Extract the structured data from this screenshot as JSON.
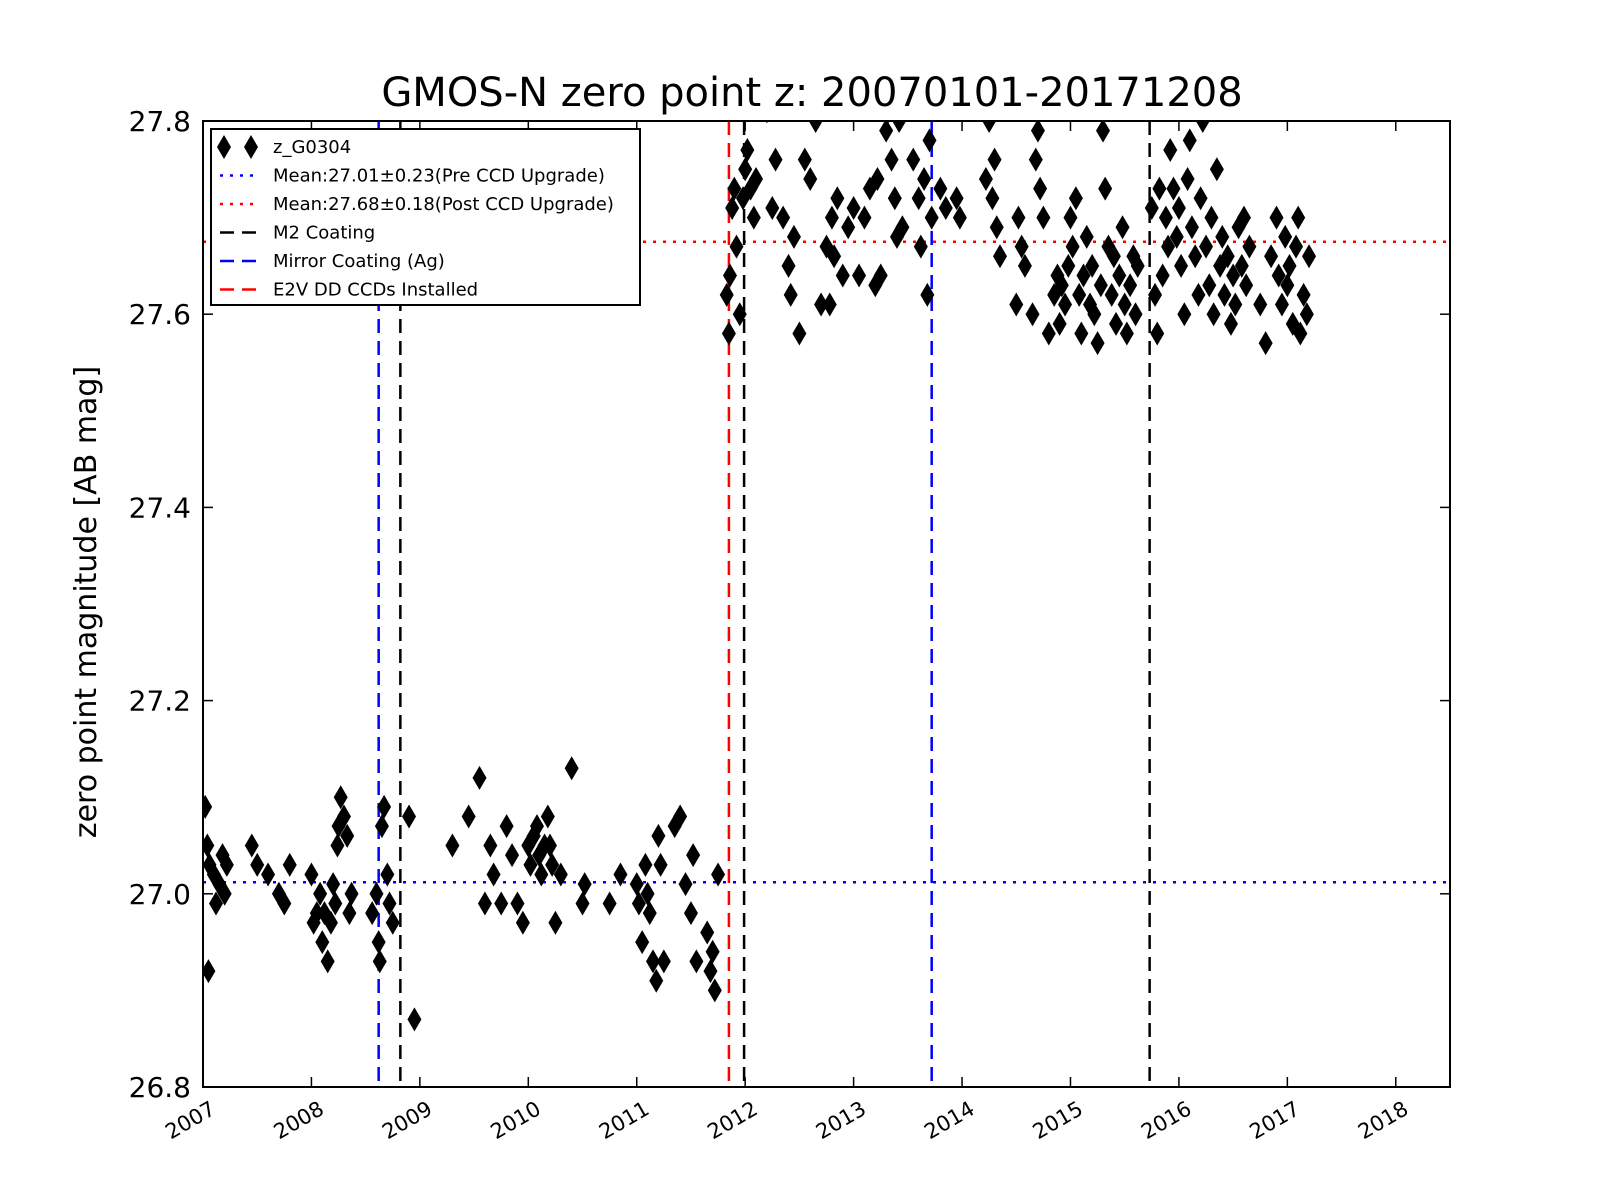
{
  "chart_data": {
    "type": "scatter",
    "title": "GMOS-N zero point z: 20070101-20171208",
    "xlabel": "",
    "ylabel": "zero point magnitude [AB mag]",
    "xlim": [
      2007.0,
      2018.5
    ],
    "ylim": [
      26.8,
      27.8
    ],
    "x_tick_labels": [
      "2007",
      "2008",
      "2009",
      "2010",
      "2011",
      "2012",
      "2013",
      "2014",
      "2015",
      "2016",
      "2017",
      "2018"
    ],
    "y_tick_labels": [
      "26.8",
      "27.0",
      "27.2",
      "27.4",
      "27.6",
      "27.8"
    ],
    "grid": false,
    "legend_position": "top-left",
    "series": [
      {
        "name": "z_G0304",
        "marker": "diamond",
        "color": "#000000",
        "points": [
          [
            2007.02,
            27.09
          ],
          [
            2007.04,
            27.05
          ],
          [
            2007.06,
            27.03
          ],
          [
            2007.05,
            26.92
          ],
          [
            2007.1,
            27.02
          ],
          [
            2007.12,
            26.99
          ],
          [
            2007.15,
            27.01
          ],
          [
            2007.18,
            27.04
          ],
          [
            2007.2,
            27.0
          ],
          [
            2007.22,
            27.03
          ],
          [
            2007.45,
            27.05
          ],
          [
            2007.5,
            27.03
          ],
          [
            2007.6,
            27.02
          ],
          [
            2007.7,
            27.0
          ],
          [
            2007.75,
            26.99
          ],
          [
            2007.8,
            27.03
          ],
          [
            2008.0,
            27.02
          ],
          [
            2008.02,
            26.97
          ],
          [
            2008.05,
            26.98
          ],
          [
            2008.08,
            27.0
          ],
          [
            2008.1,
            26.95
          ],
          [
            2008.12,
            26.98
          ],
          [
            2008.15,
            26.93
          ],
          [
            2008.18,
            26.97
          ],
          [
            2008.2,
            27.01
          ],
          [
            2008.22,
            26.99
          ],
          [
            2008.24,
            27.05
          ],
          [
            2008.25,
            27.07
          ],
          [
            2008.27,
            27.1
          ],
          [
            2008.3,
            27.08
          ],
          [
            2008.33,
            27.06
          ],
          [
            2008.35,
            26.98
          ],
          [
            2008.37,
            27.0
          ],
          [
            2008.56,
            26.98
          ],
          [
            2008.6,
            27.0
          ],
          [
            2008.62,
            26.95
          ],
          [
            2008.63,
            26.93
          ],
          [
            2008.65,
            27.07
          ],
          [
            2008.67,
            27.09
          ],
          [
            2008.7,
            27.02
          ],
          [
            2008.72,
            26.99
          ],
          [
            2008.75,
            26.97
          ],
          [
            2008.9,
            27.08
          ],
          [
            2008.95,
            26.87
          ],
          [
            2009.3,
            27.05
          ],
          [
            2009.45,
            27.08
          ],
          [
            2009.55,
            27.12
          ],
          [
            2009.6,
            26.99
          ],
          [
            2009.65,
            27.05
          ],
          [
            2009.68,
            27.02
          ],
          [
            2009.75,
            26.99
          ],
          [
            2009.8,
            27.07
          ],
          [
            2009.85,
            27.04
          ],
          [
            2009.9,
            26.99
          ],
          [
            2009.95,
            26.97
          ],
          [
            2010.0,
            27.05
          ],
          [
            2010.02,
            27.03
          ],
          [
            2010.05,
            27.06
          ],
          [
            2010.08,
            27.07
          ],
          [
            2010.1,
            27.04
          ],
          [
            2010.12,
            27.02
          ],
          [
            2010.15,
            27.05
          ],
          [
            2010.18,
            27.08
          ],
          [
            2010.2,
            27.05
          ],
          [
            2010.22,
            27.03
          ],
          [
            2010.25,
            26.97
          ],
          [
            2010.3,
            27.02
          ],
          [
            2010.4,
            27.13
          ],
          [
            2010.5,
            26.99
          ],
          [
            2010.52,
            27.01
          ],
          [
            2010.75,
            26.99
          ],
          [
            2010.85,
            27.02
          ],
          [
            2011.0,
            27.01
          ],
          [
            2011.02,
            26.99
          ],
          [
            2011.05,
            26.95
          ],
          [
            2011.08,
            27.03
          ],
          [
            2011.1,
            27.0
          ],
          [
            2011.12,
            26.98
          ],
          [
            2011.15,
            26.93
          ],
          [
            2011.18,
            26.91
          ],
          [
            2011.2,
            27.06
          ],
          [
            2011.22,
            27.03
          ],
          [
            2011.25,
            26.93
          ],
          [
            2011.35,
            27.07
          ],
          [
            2011.4,
            27.08
          ],
          [
            2011.45,
            27.01
          ],
          [
            2011.5,
            26.98
          ],
          [
            2011.52,
            27.04
          ],
          [
            2011.55,
            26.93
          ],
          [
            2011.65,
            26.96
          ],
          [
            2011.68,
            26.92
          ],
          [
            2011.7,
            26.94
          ],
          [
            2011.72,
            26.9
          ],
          [
            2011.75,
            27.02
          ],
          [
            2011.83,
            27.62
          ],
          [
            2011.85,
            27.58
          ],
          [
            2011.86,
            27.64
          ],
          [
            2011.88,
            27.71
          ],
          [
            2011.9,
            27.73
          ],
          [
            2011.92,
            27.67
          ],
          [
            2011.95,
            27.6
          ],
          [
            2011.98,
            27.72
          ],
          [
            2012.0,
            27.75
          ],
          [
            2012.02,
            27.77
          ],
          [
            2012.05,
            27.73
          ],
          [
            2012.08,
            27.7
          ],
          [
            2012.1,
            27.74
          ],
          [
            2012.2,
            27.81
          ],
          [
            2012.25,
            27.71
          ],
          [
            2012.28,
            27.76
          ],
          [
            2012.35,
            27.7
          ],
          [
            2012.4,
            27.65
          ],
          [
            2012.42,
            27.62
          ],
          [
            2012.45,
            27.68
          ],
          [
            2012.5,
            27.58
          ],
          [
            2012.55,
            27.76
          ],
          [
            2012.6,
            27.74
          ],
          [
            2012.65,
            27.8
          ],
          [
            2012.7,
            27.61
          ],
          [
            2012.75,
            27.67
          ],
          [
            2012.78,
            27.61
          ],
          [
            2012.8,
            27.7
          ],
          [
            2012.82,
            27.66
          ],
          [
            2012.85,
            27.72
          ],
          [
            2012.9,
            27.64
          ],
          [
            2012.95,
            27.69
          ],
          [
            2013.0,
            27.71
          ],
          [
            2013.05,
            27.64
          ],
          [
            2013.1,
            27.7
          ],
          [
            2013.15,
            27.73
          ],
          [
            2013.2,
            27.63
          ],
          [
            2013.22,
            27.74
          ],
          [
            2013.25,
            27.64
          ],
          [
            2013.3,
            27.79
          ],
          [
            2013.32,
            27.81
          ],
          [
            2013.35,
            27.76
          ],
          [
            2013.38,
            27.72
          ],
          [
            2013.4,
            27.68
          ],
          [
            2013.42,
            27.8
          ],
          [
            2013.45,
            27.69
          ],
          [
            2013.55,
            27.76
          ],
          [
            2013.6,
            27.72
          ],
          [
            2013.62,
            27.67
          ],
          [
            2013.65,
            27.74
          ],
          [
            2013.68,
            27.62
          ],
          [
            2013.7,
            27.78
          ],
          [
            2013.72,
            27.7
          ],
          [
            2013.8,
            27.73
          ],
          [
            2013.85,
            27.71
          ],
          [
            2013.95,
            27.72
          ],
          [
            2013.98,
            27.7
          ],
          [
            2014.22,
            27.74
          ],
          [
            2014.25,
            27.8
          ],
          [
            2014.28,
            27.72
          ],
          [
            2014.3,
            27.76
          ],
          [
            2014.32,
            27.69
          ],
          [
            2014.35,
            27.66
          ],
          [
            2014.5,
            27.61
          ],
          [
            2014.52,
            27.7
          ],
          [
            2014.55,
            27.67
          ],
          [
            2014.58,
            27.65
          ],
          [
            2014.65,
            27.6
          ],
          [
            2014.68,
            27.76
          ],
          [
            2014.7,
            27.79
          ],
          [
            2014.72,
            27.73
          ],
          [
            2014.75,
            27.7
          ],
          [
            2014.8,
            27.58
          ],
          [
            2014.85,
            27.62
          ],
          [
            2014.88,
            27.64
          ],
          [
            2014.9,
            27.59
          ],
          [
            2014.92,
            27.63
          ],
          [
            2014.95,
            27.61
          ],
          [
            2014.98,
            27.65
          ],
          [
            2015.0,
            27.7
          ],
          [
            2015.02,
            27.67
          ],
          [
            2015.05,
            27.72
          ],
          [
            2015.08,
            27.62
          ],
          [
            2015.1,
            27.58
          ],
          [
            2015.12,
            27.64
          ],
          [
            2015.15,
            27.68
          ],
          [
            2015.18,
            27.61
          ],
          [
            2015.2,
            27.65
          ],
          [
            2015.22,
            27.6
          ],
          [
            2015.25,
            27.57
          ],
          [
            2015.28,
            27.63
          ],
          [
            2015.3,
            27.79
          ],
          [
            2015.32,
            27.73
          ],
          [
            2015.35,
            27.67
          ],
          [
            2015.38,
            27.62
          ],
          [
            2015.4,
            27.66
          ],
          [
            2015.42,
            27.59
          ],
          [
            2015.45,
            27.64
          ],
          [
            2015.48,
            27.69
          ],
          [
            2015.5,
            27.61
          ],
          [
            2015.52,
            27.58
          ],
          [
            2015.55,
            27.63
          ],
          [
            2015.58,
            27.66
          ],
          [
            2015.6,
            27.6
          ],
          [
            2015.62,
            27.65
          ],
          [
            2015.75,
            27.71
          ],
          [
            2015.78,
            27.62
          ],
          [
            2015.8,
            27.58
          ],
          [
            2015.82,
            27.73
          ],
          [
            2015.85,
            27.64
          ],
          [
            2015.88,
            27.7
          ],
          [
            2015.9,
            27.67
          ],
          [
            2015.92,
            27.77
          ],
          [
            2015.95,
            27.73
          ],
          [
            2015.98,
            27.68
          ],
          [
            2016.0,
            27.71
          ],
          [
            2016.02,
            27.65
          ],
          [
            2016.05,
            27.6
          ],
          [
            2016.08,
            27.74
          ],
          [
            2016.1,
            27.78
          ],
          [
            2016.12,
            27.69
          ],
          [
            2016.15,
            27.66
          ],
          [
            2016.18,
            27.62
          ],
          [
            2016.2,
            27.72
          ],
          [
            2016.22,
            27.8
          ],
          [
            2016.25,
            27.67
          ],
          [
            2016.28,
            27.63
          ],
          [
            2016.3,
            27.7
          ],
          [
            2016.32,
            27.6
          ],
          [
            2016.35,
            27.75
          ],
          [
            2016.38,
            27.65
          ],
          [
            2016.4,
            27.68
          ],
          [
            2016.42,
            27.62
          ],
          [
            2016.45,
            27.66
          ],
          [
            2016.48,
            27.59
          ],
          [
            2016.5,
            27.64
          ],
          [
            2016.52,
            27.61
          ],
          [
            2016.55,
            27.69
          ],
          [
            2016.58,
            27.65
          ],
          [
            2016.6,
            27.7
          ],
          [
            2016.62,
            27.63
          ],
          [
            2016.65,
            27.67
          ],
          [
            2016.75,
            27.61
          ],
          [
            2016.8,
            27.57
          ],
          [
            2016.85,
            27.66
          ],
          [
            2016.9,
            27.7
          ],
          [
            2016.92,
            27.64
          ],
          [
            2016.95,
            27.61
          ],
          [
            2016.98,
            27.68
          ],
          [
            2017.0,
            27.63
          ],
          [
            2017.02,
            27.65
          ],
          [
            2017.05,
            27.59
          ],
          [
            2017.08,
            27.67
          ],
          [
            2017.1,
            27.7
          ],
          [
            2017.12,
            27.58
          ],
          [
            2017.15,
            27.62
          ],
          [
            2017.18,
            27.6
          ],
          [
            2017.2,
            27.66
          ]
        ]
      }
    ],
    "horizontal_lines": [
      {
        "name": "Mean:27.01±0.23(Pre CCD Upgrade)",
        "y": 27.012,
        "style": "dotted",
        "color": "#0000ff"
      },
      {
        "name": "Mean:27.68±0.18(Post CCD Upgrade)",
        "y": 27.675,
        "style": "dotted",
        "color": "#ff0000"
      }
    ],
    "vertical_lines": [
      {
        "name": "M2 Coating",
        "color": "#000000",
        "style": "dashed",
        "x": [
          2008.82,
          2011.99,
          2015.73
        ]
      },
      {
        "name": "Mirror Coating (Ag)",
        "color": "#0000ff",
        "style": "dashed",
        "x": [
          2008.62,
          2013.72
        ]
      },
      {
        "name": "E2V DD CCDs Installed",
        "color": "#ff0000",
        "style": "dashed",
        "x": [
          2011.85
        ]
      }
    ]
  }
}
